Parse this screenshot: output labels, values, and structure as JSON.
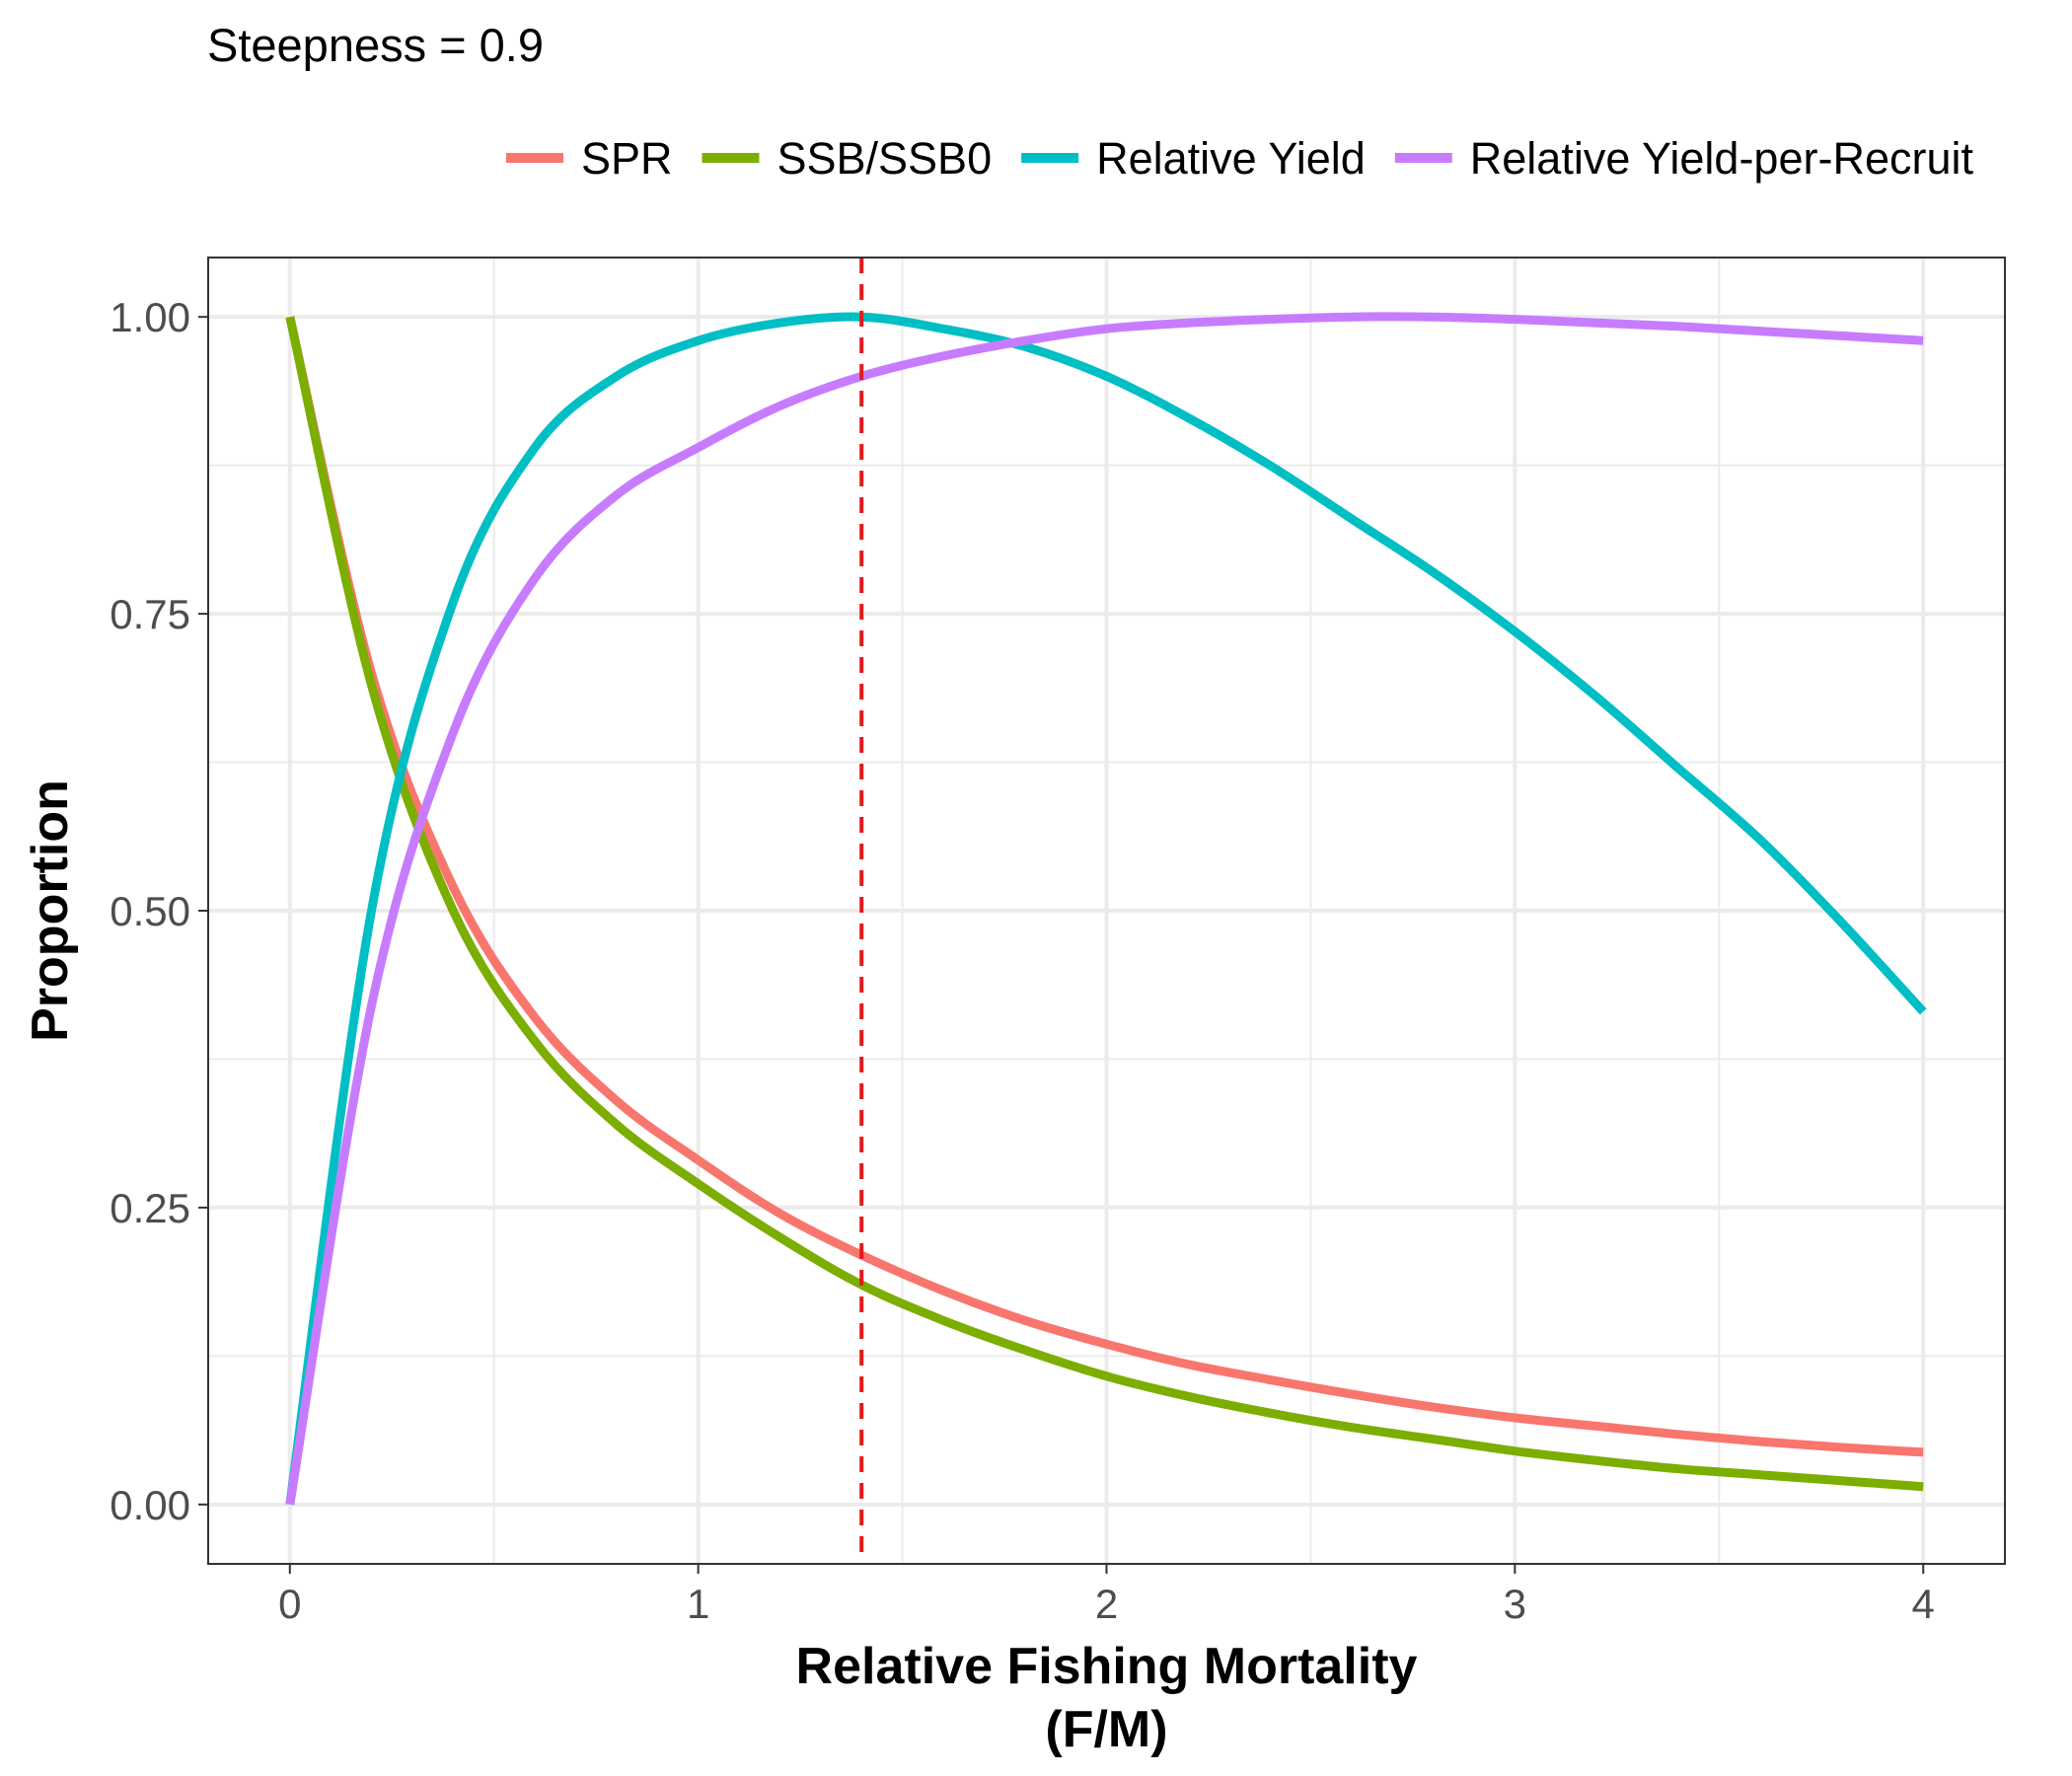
{
  "chart_data": {
    "type": "line",
    "title": "Steepness = 0.9",
    "xlabel": "Relative Fishing Mortality",
    "xlabel_line2": "(F/M)",
    "ylabel": "Proportion",
    "xlim": [
      -0.2,
      4.2
    ],
    "ylim": [
      -0.05,
      1.05
    ],
    "x_ticks": [
      0,
      1,
      2,
      3,
      4
    ],
    "x_tick_labels": [
      "0",
      "1",
      "2",
      "3",
      "4"
    ],
    "y_ticks": [
      0,
      0.25,
      0.5,
      0.75,
      1.0
    ],
    "y_tick_labels": [
      "0.00",
      "0.25",
      "0.50",
      "0.75",
      "1.00"
    ],
    "grid": true,
    "legend_position": "top",
    "reference_line": {
      "x": 1.4,
      "color": "#e41a1c",
      "style": "dashed"
    },
    "x": [
      0,
      0.2,
      0.4,
      0.6,
      0.8,
      1.0,
      1.2,
      1.4,
      1.6,
      1.8,
      2.0,
      2.2,
      2.4,
      2.6,
      2.8,
      3.0,
      3.2,
      3.4,
      3.6,
      3.8,
      4.0
    ],
    "series": [
      {
        "name": "SPR",
        "color": "#F8766D",
        "values": [
          1.0,
          0.7,
          0.52,
          0.41,
          0.34,
          0.29,
          0.245,
          0.21,
          0.18,
          0.155,
          0.135,
          0.118,
          0.105,
          0.093,
          0.082,
          0.073,
          0.066,
          0.059,
          0.053,
          0.048,
          0.044
        ]
      },
      {
        "name": "SSB/SSB0",
        "color": "#7CAE00",
        "values": [
          1.0,
          0.69,
          0.5,
          0.39,
          0.32,
          0.27,
          0.225,
          0.185,
          0.155,
          0.13,
          0.108,
          0.091,
          0.077,
          0.065,
          0.055,
          0.045,
          0.037,
          0.03,
          0.025,
          0.02,
          0.015
        ]
      },
      {
        "name": "Relative Yield",
        "color": "#00BFC4",
        "values": [
          0,
          0.5,
          0.76,
          0.89,
          0.95,
          0.98,
          0.995,
          1.0,
          0.99,
          0.975,
          0.95,
          0.915,
          0.875,
          0.83,
          0.785,
          0.735,
          0.68,
          0.62,
          0.56,
          0.49,
          0.415
        ]
      },
      {
        "name": "Relative Yield-per-Recruit",
        "color": "#C77CFF",
        "values": [
          0,
          0.42,
          0.65,
          0.78,
          0.85,
          0.89,
          0.925,
          0.95,
          0.967,
          0.98,
          0.99,
          0.995,
          0.998,
          1.0,
          1.0,
          0.998,
          0.995,
          0.992,
          0.988,
          0.984,
          0.98
        ]
      }
    ]
  }
}
